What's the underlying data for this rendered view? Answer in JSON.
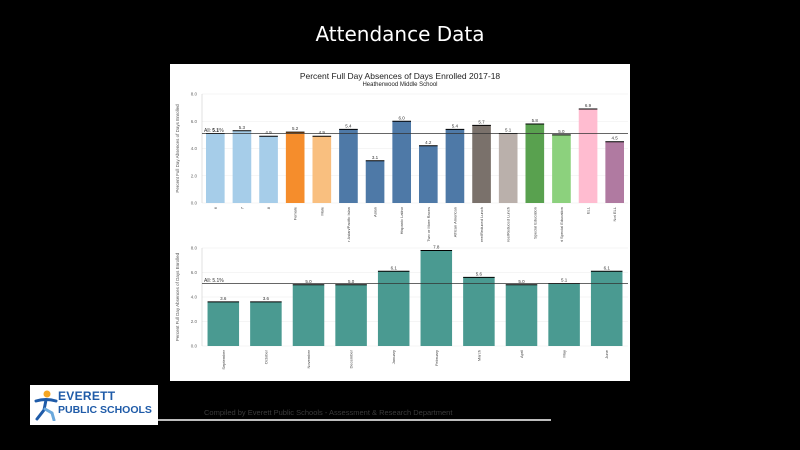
{
  "slide": {
    "title": "Attendance Data",
    "footer": "Compiled by Everett Public Schools - Assessment & Research Department"
  },
  "logo": {
    "line1": "EVERETT",
    "line2": "PUBLIC SCHOOLS"
  },
  "chart_data": [
    {
      "type": "bar",
      "title": "Percent Full Day Absences of Days Enrolled 2017-18",
      "subtitle": "Heatherwood Middle School",
      "ylabel": "Percent Full Day Absences of Days Enrolled",
      "ylim": [
        0,
        8
      ],
      "yticks": [
        0,
        2,
        4,
        6,
        8
      ],
      "reference_line": {
        "value": 5.1,
        "label": "All: 5.1%"
      },
      "categories": [
        "6",
        "7",
        "8",
        "Female",
        "Male",
        "Other Asian/Pacific Islan",
        "Asian",
        "Hispanic Latino",
        "Two or More Races",
        "African American",
        "Free/Reduced Lunch",
        "Not Free/Reduced Lunch",
        "Special Education",
        "Not Special Education",
        "ELL",
        "Not ELL"
      ],
      "values": [
        5.1,
        5.3,
        4.9,
        5.2,
        4.9,
        5.4,
        3.1,
        6.0,
        4.2,
        5.4,
        5.7,
        5.1,
        5.8,
        5.0,
        6.9,
        4.5
      ],
      "colors": [
        "#a6cde9",
        "#a6cde9",
        "#a6cde9",
        "#f58d2c",
        "#f9bf7f",
        "#4e79a7",
        "#4e79a7",
        "#4e79a7",
        "#4e79a7",
        "#4e79a7",
        "#7a716b",
        "#bab0ab",
        "#59a14f",
        "#8cd17d",
        "#ffbcd0",
        "#b07aa1"
      ]
    },
    {
      "type": "bar",
      "ylabel": "Percent Full Day Absences of Days Enrolled",
      "ylim": [
        0,
        8
      ],
      "yticks": [
        0,
        2,
        4,
        6,
        8
      ],
      "reference_line": {
        "value": 5.1,
        "label": "All: 5.1%"
      },
      "categories": [
        "September",
        "October",
        "November",
        "December",
        "January",
        "February",
        "March",
        "April",
        "May",
        "June"
      ],
      "values": [
        3.6,
        3.6,
        5.0,
        5.0,
        6.1,
        7.8,
        5.6,
        5.0,
        5.1,
        6.1
      ],
      "colors": [
        "#4a9a91"
      ]
    }
  ]
}
